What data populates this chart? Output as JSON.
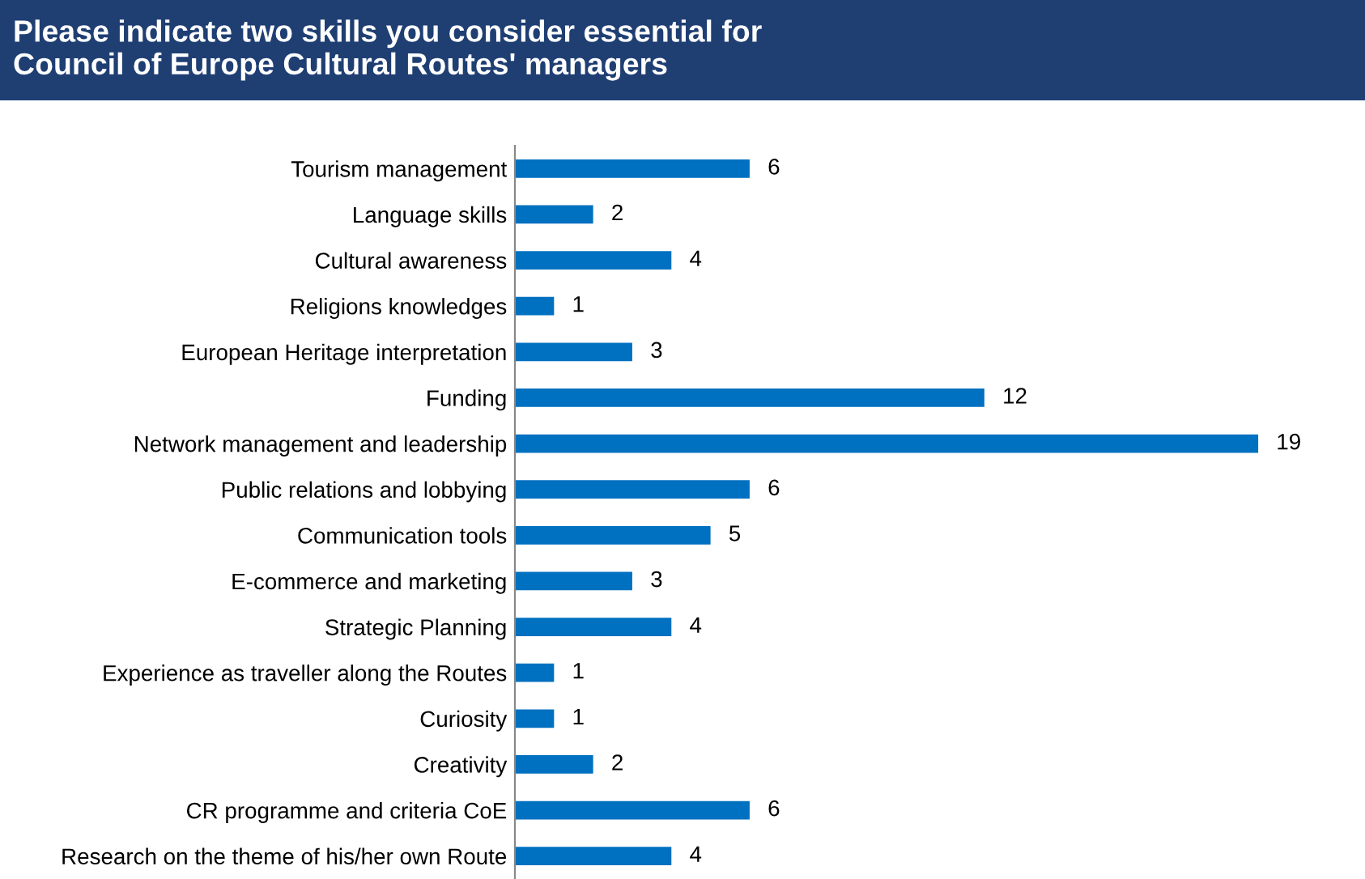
{
  "chart_data": {
    "type": "bar",
    "orientation": "horizontal",
    "title": "Please indicate two skills you consider essential for\nCouncil of Europe Cultural Routes' managers",
    "categories": [
      "Tourism management",
      "Language skills",
      "Cultural awareness",
      "Religions knowledges",
      "European Heritage interpretation",
      "Funding",
      "Network management and leadership",
      "Public relations and lobbying",
      "Communication tools",
      "E-commerce and marketing",
      "Strategic Planning",
      "Experience as traveller along the Routes",
      "Curiosity",
      "Creativity",
      "CR programme and criteria CoE",
      "Research on the theme of his/her own Route"
    ],
    "values": [
      6,
      2,
      4,
      1,
      3,
      12,
      19,
      6,
      5,
      3,
      4,
      1,
      1,
      2,
      6,
      4
    ],
    "color": "#0070c0",
    "data_labels": true,
    "grid": false,
    "legend": false
  }
}
